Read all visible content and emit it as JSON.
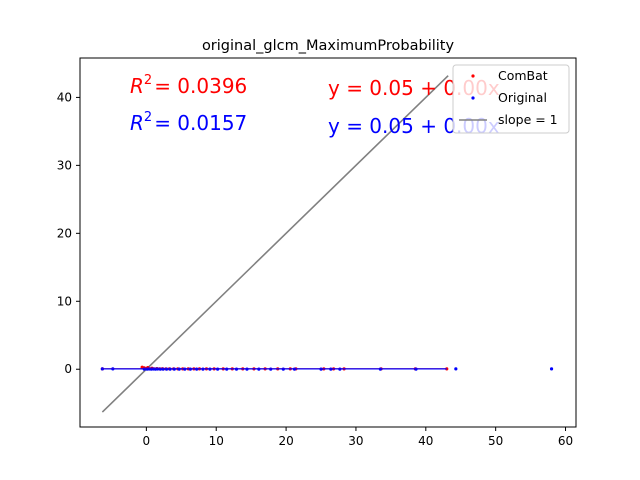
{
  "chart_data": {
    "type": "scatter",
    "title": "original_glcm_MaximumProbability",
    "xlabel": "",
    "ylabel": "",
    "xlim": [
      -9.5,
      61.5
    ],
    "ylim": [
      -8.5,
      45.8
    ],
    "x_ticks": [
      0,
      10,
      20,
      30,
      40,
      50,
      60
    ],
    "y_ticks": [
      0,
      10,
      20,
      30,
      40
    ],
    "grid": false,
    "legend_position": "top-right",
    "legend": [
      "ComBat",
      "Original",
      "slope = 1"
    ],
    "annotations": [
      {
        "r2_prefix": "R",
        "r2_sup": "2",
        "r2_value": "= 0.0396",
        "equation": "y = 0.05 + 0.00x",
        "color": "#ff0000"
      },
      {
        "r2_prefix": "R",
        "r2_sup": "2",
        "r2_value": "= 0.0157",
        "equation": "y = 0.05 + 0.00x",
        "color": "#0000ff"
      }
    ],
    "series": [
      {
        "name": "ComBat",
        "color": "#ff0000",
        "x": [
          -6.3,
          -0.6,
          -0.3,
          0.0,
          0.2,
          0.5,
          0.8,
          1.1,
          1.5,
          1.9,
          2.3,
          2.8,
          3.3,
          3.9,
          4.5,
          5.2,
          6.0,
          6.8,
          7.6,
          8.6,
          9.7,
          11.0,
          12.3,
          13.8,
          15.4,
          17.0,
          18.8,
          20.6,
          21.4,
          25.4,
          26.8,
          28.3,
          33.6,
          38.5,
          43.0
        ],
        "y": [
          0.05,
          0.3,
          0.2,
          0.1,
          0.25,
          0.05,
          0.15,
          0.05,
          0.1,
          0.05,
          0.08,
          0.05,
          0.06,
          0.05,
          0.05,
          0.05,
          0.05,
          0.05,
          0.05,
          0.05,
          0.05,
          0.05,
          0.05,
          0.05,
          0.05,
          0.05,
          0.05,
          0.05,
          0.05,
          0.05,
          0.05,
          0.05,
          0.05,
          0.05,
          0.05
        ]
      },
      {
        "name": "Original",
        "color": "#0000ff",
        "x": [
          -6.3,
          -4.8,
          -0.3,
          0.1,
          0.4,
          0.7,
          1.0,
          1.3,
          1.6,
          2.0,
          2.4,
          2.9,
          3.4,
          4.0,
          4.7,
          5.5,
          6.3,
          7.2,
          8.1,
          9.1,
          10.2,
          11.5,
          12.9,
          14.4,
          16.1,
          17.8,
          19.6,
          21.2,
          25.0,
          26.4,
          27.7,
          33.5,
          38.6,
          44.3,
          58.0
        ],
        "y": [
          0.05,
          0.05,
          0.02,
          0.02,
          0.04,
          0.02,
          0.03,
          0.02,
          0.03,
          0.02,
          0.02,
          0.02,
          0.02,
          0.02,
          0.02,
          0.02,
          0.02,
          0.02,
          0.02,
          0.02,
          0.02,
          0.02,
          0.02,
          0.02,
          0.02,
          0.02,
          0.02,
          0.02,
          0.02,
          0.02,
          0.02,
          0.02,
          0.02,
          0.05,
          0.05
        ]
      }
    ],
    "fit_lines": [
      {
        "name": "ComBat fit",
        "color": "#ff0000",
        "intercept": 0.05,
        "slope": 0.0,
        "x_range": [
          -6.3,
          43.0
        ]
      },
      {
        "name": "Original fit",
        "color": "#0000ff",
        "intercept": 0.05,
        "slope": 0.0,
        "x_range": [
          -6.3,
          43.0
        ]
      }
    ],
    "reference_line": {
      "name": "slope = 1",
      "color": "#808080",
      "x_range": [
        -6.3,
        43.2
      ]
    }
  }
}
